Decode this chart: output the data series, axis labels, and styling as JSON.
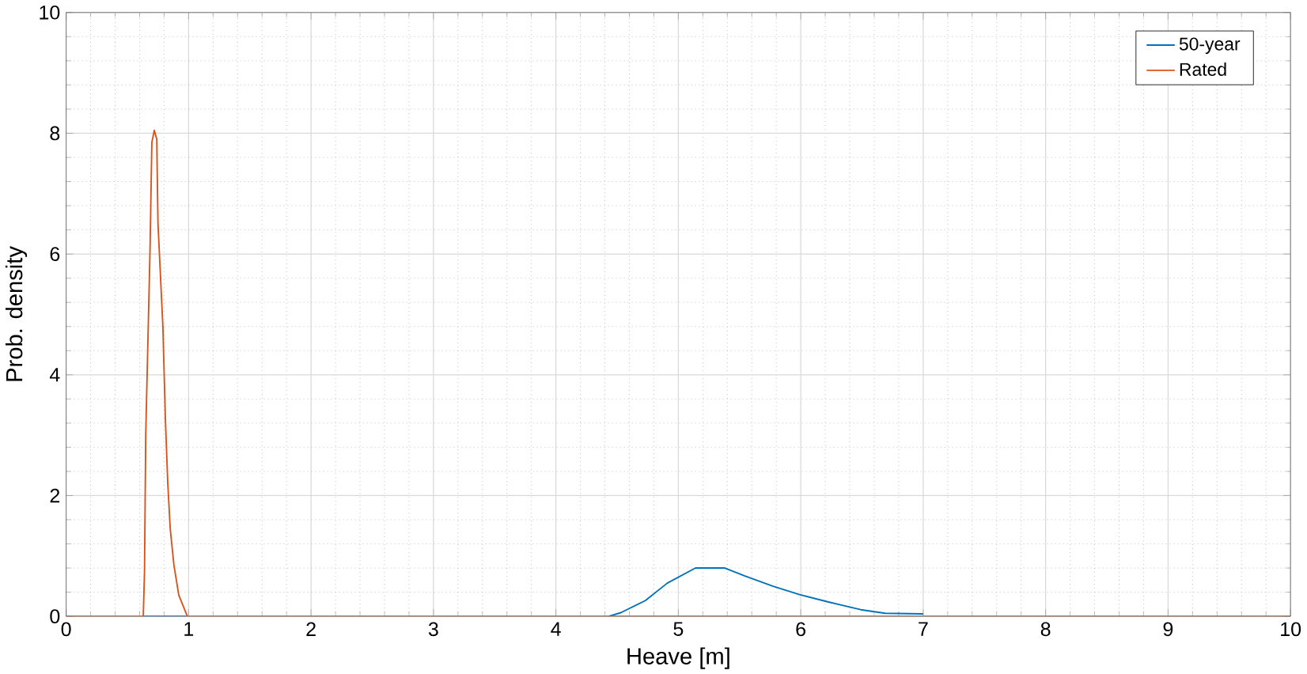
{
  "chart_data": {
    "type": "line",
    "xlabel": "Heave [m]",
    "ylabel": "Prob. density",
    "xlim": [
      0,
      10
    ],
    "ylim": [
      0,
      10
    ],
    "xticks": [
      0,
      1,
      2,
      3,
      4,
      5,
      6,
      7,
      8,
      9,
      10
    ],
    "yticks": [
      0,
      2,
      4,
      6,
      8,
      10
    ],
    "grid": true,
    "legend": "top right",
    "series": [
      {
        "name": "50-year",
        "color": "#0072bd",
        "x": [
          0.63,
          0.99,
          2.5,
          4.43,
          4.53,
          4.73,
          4.91,
          5.14,
          5.38,
          5.54,
          5.77,
          5.99,
          6.22,
          6.49,
          6.69,
          7.0
        ],
        "values": [
          0,
          0,
          null,
          0,
          0.06,
          0.26,
          0.55,
          0.8,
          0.8,
          0.67,
          0.5,
          0.36,
          0.24,
          0.11,
          0.05,
          0.04
        ]
      },
      {
        "name": "Rated",
        "color": "#d95319",
        "x": [
          0,
          0.63,
          0.64,
          0.65,
          0.685,
          0.7,
          0.72,
          0.74,
          0.75,
          0.79,
          0.81,
          0.83,
          0.85,
          0.88,
          0.92,
          0.99,
          10
        ],
        "values": [
          0,
          0,
          0.75,
          3.0,
          6.07,
          7.85,
          8.05,
          7.9,
          6.5,
          4.8,
          3.3,
          2.2,
          1.45,
          0.85,
          0.35,
          0,
          0
        ]
      }
    ]
  }
}
